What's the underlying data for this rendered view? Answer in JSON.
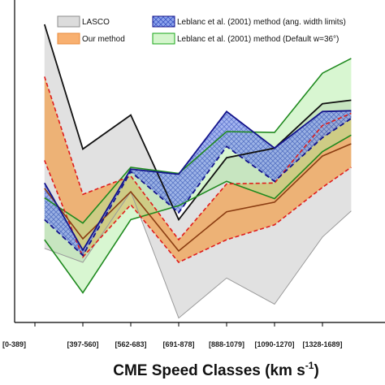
{
  "chart_data": {
    "type": "area",
    "categories": [
      "[0-389]",
      "[397-560]",
      "[562-683]",
      "[691-878]",
      "[888-1079]",
      "[1090-1270]",
      "[1328-1689]"
    ],
    "xlabel_main": "CME Speed Classes (km s",
    "xlabel_sup": "-1",
    "xlabel_end": ")",
    "ylim": [
      0,
      370
    ],
    "grid": false,
    "legend_position": "top",
    "colors": {
      "lasco": "#8c8c8c",
      "ours": "#f5932e",
      "ang": "#3f6fd8",
      "default": "#19a619",
      "lasco_line": "#111111",
      "ours_line": "#e01c1c",
      "ang_line": "#14148c",
      "default_line": "#1f8a1f",
      "brown_line": "#8b3d12"
    },
    "legend": [
      {
        "key": "lasco",
        "label": "LASCO"
      },
      {
        "key": "ours",
        "label": "Our method"
      },
      {
        "key": "ang",
        "label": "Leblanc et al. (2001) method (ang. width limits)"
      },
      {
        "key": "default",
        "label": "Leblanc et al. (2001) method (Default w=36°)"
      }
    ],
    "x": [
      0.2,
      1,
      2,
      3,
      4,
      5,
      6,
      6.6
    ],
    "bands": {
      "lasco": {
        "upper": [
          342,
          199,
          238,
          118,
          189,
          200,
          251,
          255
        ],
        "lower": [
          85,
          69,
          150,
          5,
          51,
          21,
          98,
          128
        ]
      },
      "ours": {
        "upper": [
          282,
          147,
          168,
          95,
          159,
          160,
          226,
          240
        ],
        "lower": [
          186,
          75,
          135,
          69,
          95,
          112,
          155,
          178
        ]
      },
      "ang": {
        "upper": [
          160,
          83,
          176,
          170,
          242,
          200,
          242,
          243
        ],
        "lower": [
          118,
          77,
          173,
          126,
          202,
          162,
          212,
          234
        ]
      },
      "default": {
        "upper": [
          143,
          114,
          178,
          171,
          219,
          218,
          286,
          303
        ],
        "lower": [
          95,
          34,
          118,
          134,
          162,
          142,
          196,
          215
        ]
      }
    },
    "middle_line": [
      154,
      96,
      150,
      82,
      127,
      138,
      191,
      205
    ]
  }
}
